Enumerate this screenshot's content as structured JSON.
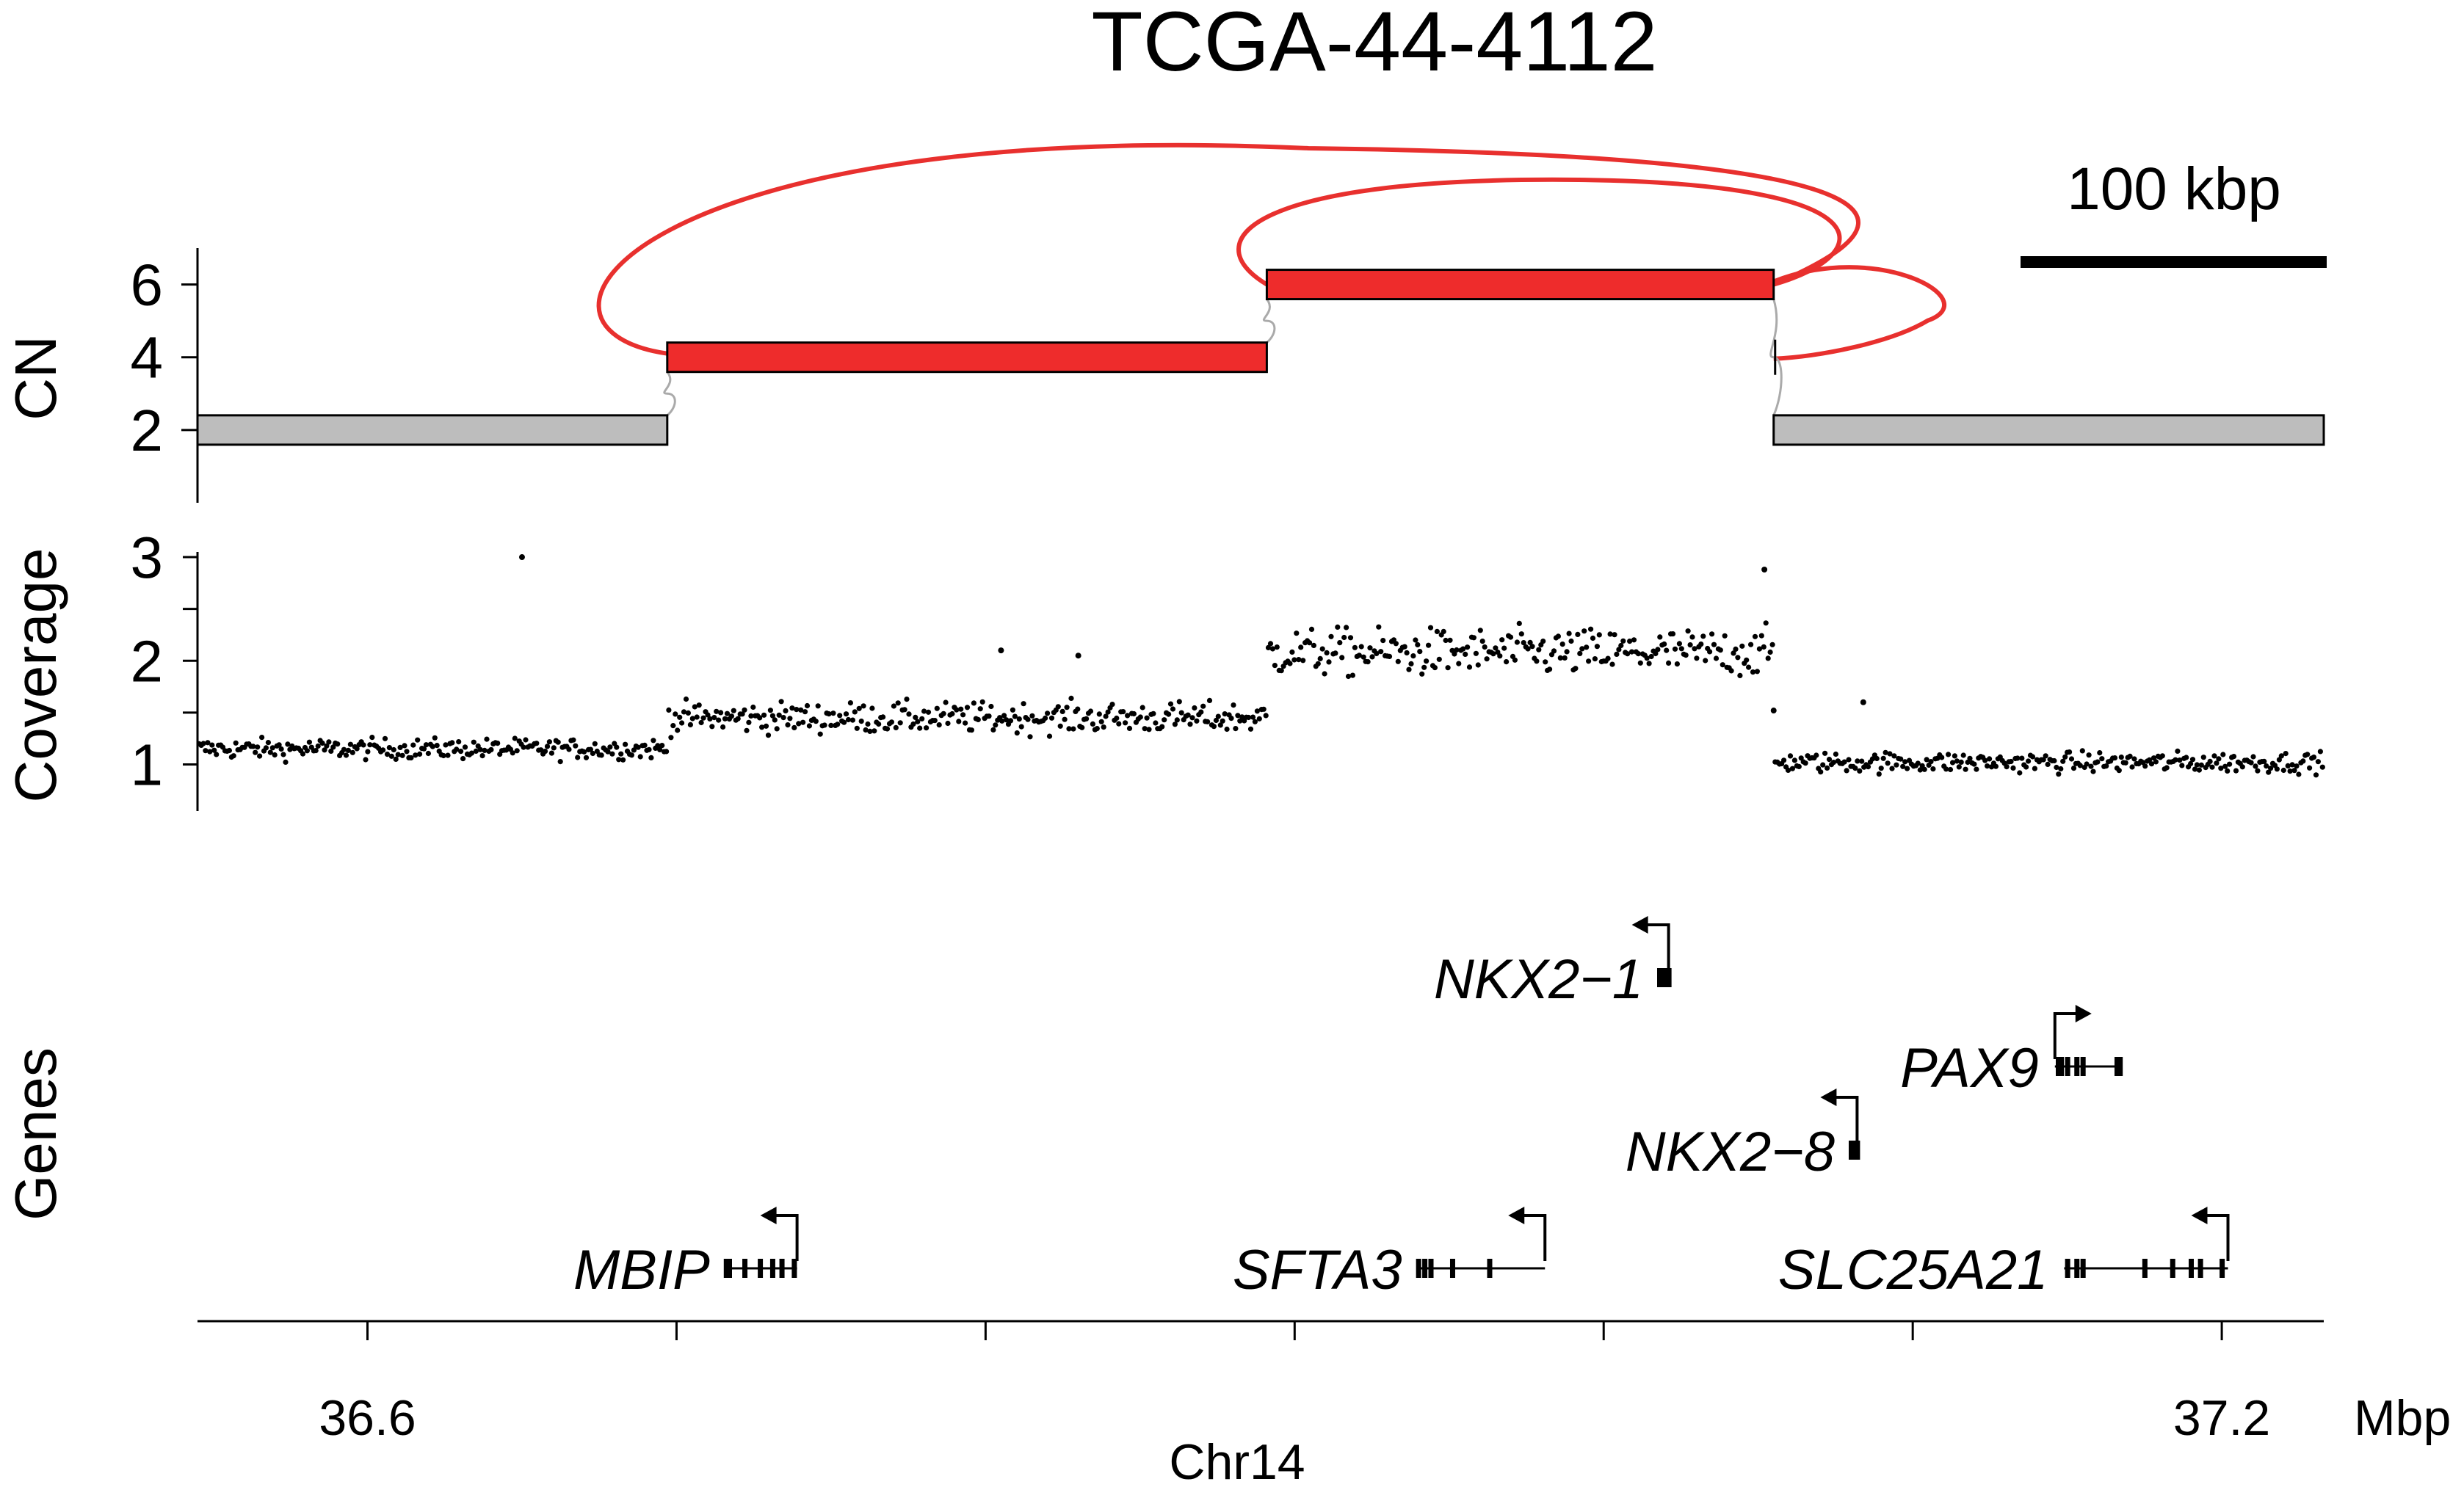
{
  "chart_data": {
    "type": "scatter",
    "title": "TCGA-44-4112",
    "scale_bar": {
      "label": "100 kbp",
      "length_mbp": 0.1
    },
    "x_axis": {
      "label": "Chr14",
      "unit": "Mbp",
      "range_mbp": [
        36.545,
        37.233
      ],
      "ticks": [
        36.6,
        36.7,
        36.8,
        36.9,
        37.0,
        37.1,
        37.2
      ],
      "tick_labels": [
        {
          "value": 36.6,
          "label": "36.6"
        },
        {
          "value": 37.2,
          "label": "37.2"
        }
      ]
    },
    "panels": {
      "cn": {
        "ylabel": "CN",
        "ylim": [
          0,
          7
        ],
        "ticks": [
          2,
          4,
          6
        ],
        "tick_labels": [
          "2",
          "4",
          "6"
        ],
        "segments": [
          {
            "start": 36.545,
            "end": 36.697,
            "cn": 2,
            "color": "#bdbdbd"
          },
          {
            "start": 36.697,
            "end": 36.891,
            "cn": 4,
            "color": "#ee2c2c"
          },
          {
            "start": 36.891,
            "end": 37.055,
            "cn": 6,
            "color": "#ee2c2c"
          },
          {
            "start": 37.055,
            "end": 37.233,
            "cn": 2,
            "color": "#bdbdbd"
          }
        ],
        "rearrangements": [
          {
            "from": 36.697,
            "to": 37.055,
            "from_cn": 4,
            "to_cn": 6
          },
          {
            "from": 36.891,
            "to": 37.055,
            "from_cn": 6,
            "to_cn": 6
          },
          {
            "from": 36.891,
            "to": 37.055,
            "from_cn": 6,
            "to_cn": 4
          }
        ],
        "arc_color": "#e8302e"
      },
      "coverage": {
        "ylabel": "Coverage",
        "ylim": [
          0.55,
          3.05
        ],
        "ticks": [
          1,
          1.5,
          2,
          2.5,
          3
        ],
        "tick_labels": [
          "1",
          "2",
          "3"
        ],
        "tick_label_values": [
          1,
          2,
          3
        ],
        "levels": [
          {
            "start": 36.545,
            "end": 36.697,
            "mean": 1.15
          },
          {
            "start": 36.697,
            "end": 36.891,
            "mean": 1.45
          },
          {
            "start": 36.891,
            "end": 37.055,
            "mean": 2.08
          },
          {
            "start": 37.055,
            "end": 37.233,
            "mean": 1.02
          }
        ],
        "outliers": [
          {
            "x": 36.65,
            "y": 3.0
          },
          {
            "x": 37.052,
            "y": 2.88
          },
          {
            "x": 36.805,
            "y": 2.1
          },
          {
            "x": 36.83,
            "y": 2.05
          },
          {
            "x": 37.084,
            "y": 1.6
          },
          {
            "x": 37.055,
            "y": 1.52
          }
        ]
      },
      "genes": {
        "ylabel": "Genes",
        "items": [
          {
            "name": "NKX2-1",
            "label": "NKX2−1",
            "start": 37.018,
            "end": 37.021,
            "strand": "-",
            "row": 0,
            "exons": [
              37.018,
              37.019,
              37.02,
              37.021
            ]
          },
          {
            "name": "PAX9",
            "label": "PAX9",
            "start": 37.146,
            "end": 37.167,
            "strand": "+",
            "row": 1,
            "exons": [
              37.147,
              37.148,
              37.15,
              37.153,
              37.155,
              37.166,
              37.167
            ]
          },
          {
            "name": "NKX2-8",
            "label": "NKX2−8",
            "start": 37.08,
            "end": 37.082,
            "strand": "-",
            "row": 2,
            "exons": [
              37.08,
              37.081,
              37.082
            ]
          },
          {
            "name": "MBIP",
            "label": "MBIP",
            "start": 36.716,
            "end": 36.739,
            "strand": "-",
            "row": 3,
            "exons": [
              36.716,
              36.717,
              36.722,
              36.727,
              36.731,
              36.734,
              36.738
            ]
          },
          {
            "name": "SFTA3",
            "label": "SFTA3",
            "start": 36.94,
            "end": 36.981,
            "strand": "-",
            "row": 3,
            "exons": [
              36.94,
              36.942,
              36.944,
              36.951,
              36.963
            ]
          },
          {
            "name": "SLC25A21",
            "label": "SLC25A21",
            "start": 37.149,
            "end": 37.202,
            "strand": "-",
            "row": 3,
            "exons": [
              37.15,
              37.153,
              37.155,
              37.175,
              37.184,
              37.19,
              37.193,
              37.2
            ]
          }
        ]
      }
    }
  }
}
